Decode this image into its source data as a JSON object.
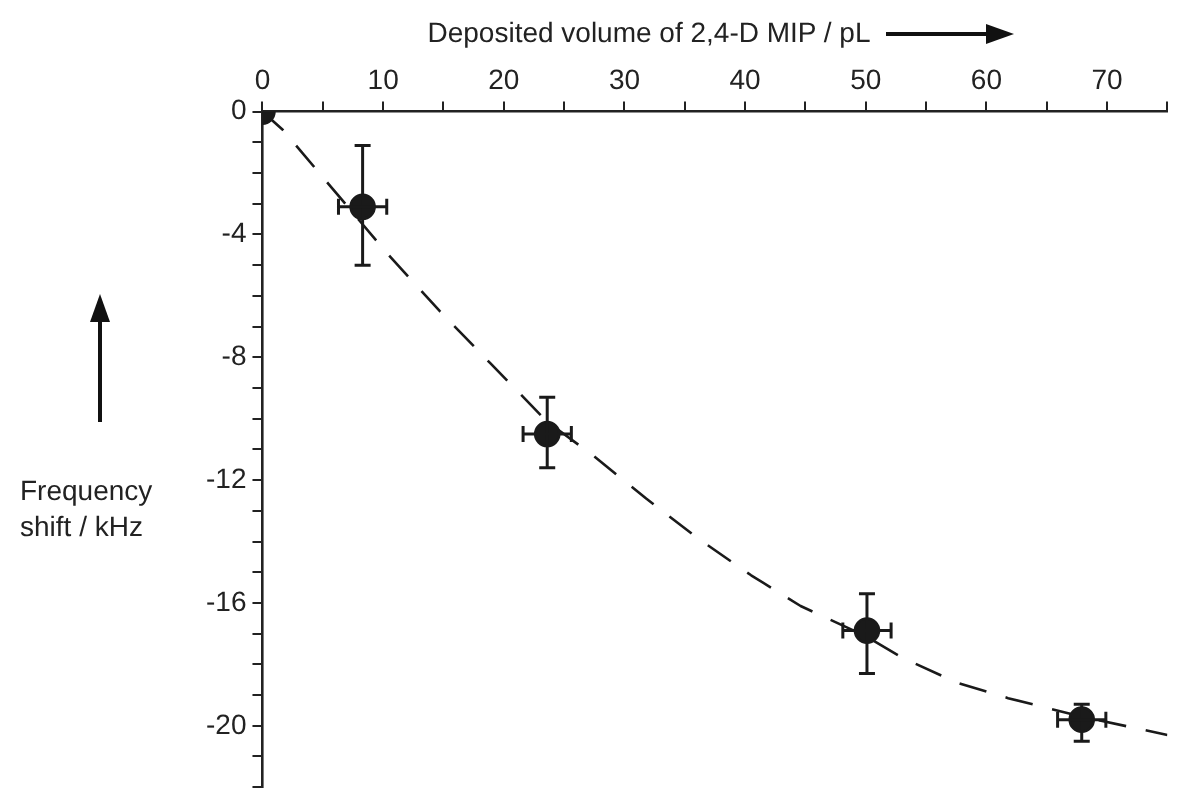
{
  "chart_data": {
    "type": "scatter",
    "xlabel": "Deposited volume of 2,4-D MIP / pL",
    "ylabel": "Frequency shift / kHz",
    "xlim": [
      0,
      75
    ],
    "xticks": [
      0,
      {
        "value": 5,
        "label": null
      },
      10,
      {
        "value": 15,
        "label": null
      },
      20,
      {
        "value": 25,
        "label": null
      },
      30,
      {
        "value": 35,
        "label": null
      },
      40,
      {
        "value": 45,
        "label": null
      },
      50,
      {
        "value": 55,
        "label": null
      },
      60,
      {
        "value": 65,
        "label": null
      },
      70,
      {
        "value": 75,
        "label": null
      }
    ],
    "ylim": [
      -22,
      0
    ],
    "yticks": [
      0,
      {
        "value": -1,
        "label": null
      },
      {
        "value": -2,
        "label": null
      },
      {
        "value": -3,
        "label": null
      },
      -4,
      {
        "value": -5,
        "label": null
      },
      {
        "value": -6,
        "label": null
      },
      {
        "value": -7,
        "label": null
      },
      -8,
      {
        "value": -9,
        "label": null
      },
      {
        "value": -10,
        "label": null
      },
      {
        "value": -11,
        "label": null
      },
      -12,
      {
        "value": -13,
        "label": null
      },
      {
        "value": -14,
        "label": null
      },
      {
        "value": -15,
        "label": null
      },
      -16,
      {
        "value": -17,
        "label": null
      },
      {
        "value": -18,
        "label": null
      },
      {
        "value": -19,
        "label": null
      },
      -20,
      {
        "value": -21,
        "label": null
      },
      {
        "value": -22,
        "label": null
      }
    ],
    "grid": false,
    "legend": false,
    "series": [
      {
        "type": "scatter",
        "marker": "circle",
        "color": "#1a1a1a",
        "x": [
          0,
          8.3,
          23.6,
          50.1,
          67.9
        ],
        "values": [
          0,
          -3.1,
          -10.5,
          -16.9,
          -19.8
        ],
        "errors": [
          null,
          [
            -5.0,
            -1.1
          ],
          [
            -11.6,
            -9.3
          ],
          [
            -18.3,
            -15.7
          ],
          [
            -20.5,
            -19.3
          ]
        ],
        "xerrors": [
          null,
          2,
          2,
          2,
          2
        ]
      },
      {
        "type": "line",
        "marker": "none",
        "line_style": "dashed",
        "color": "#1a1a1a",
        "x": [
          0,
          1.7,
          10.3,
          14.7,
          18.9,
          23.6,
          27.4,
          31.8,
          36.1,
          40.5,
          44.6,
          50.1,
          53.1,
          57.6,
          61.8,
          67.9,
          75
        ],
        "values": [
          0,
          -0.6,
          -4.6,
          -6.5,
          -8.2,
          -10.1,
          -11.2,
          -12.6,
          -13.9,
          -15.1,
          -16.1,
          -17.1,
          -17.8,
          -18.6,
          -19.1,
          -19.7,
          -20.3
        ]
      }
    ]
  }
}
